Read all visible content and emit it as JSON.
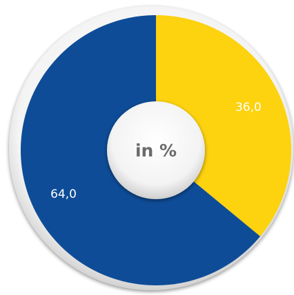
{
  "chart_data": {
    "type": "pie",
    "center_text": "in %",
    "slices": [
      {
        "label": "36,0",
        "value": 36.0,
        "color": "#FDD20E"
      },
      {
        "label": "64,0",
        "value": 64.0,
        "color": "#0E4C97"
      }
    ],
    "start_angle_deg": 0,
    "direction": "clockwise",
    "legend": "none"
  }
}
